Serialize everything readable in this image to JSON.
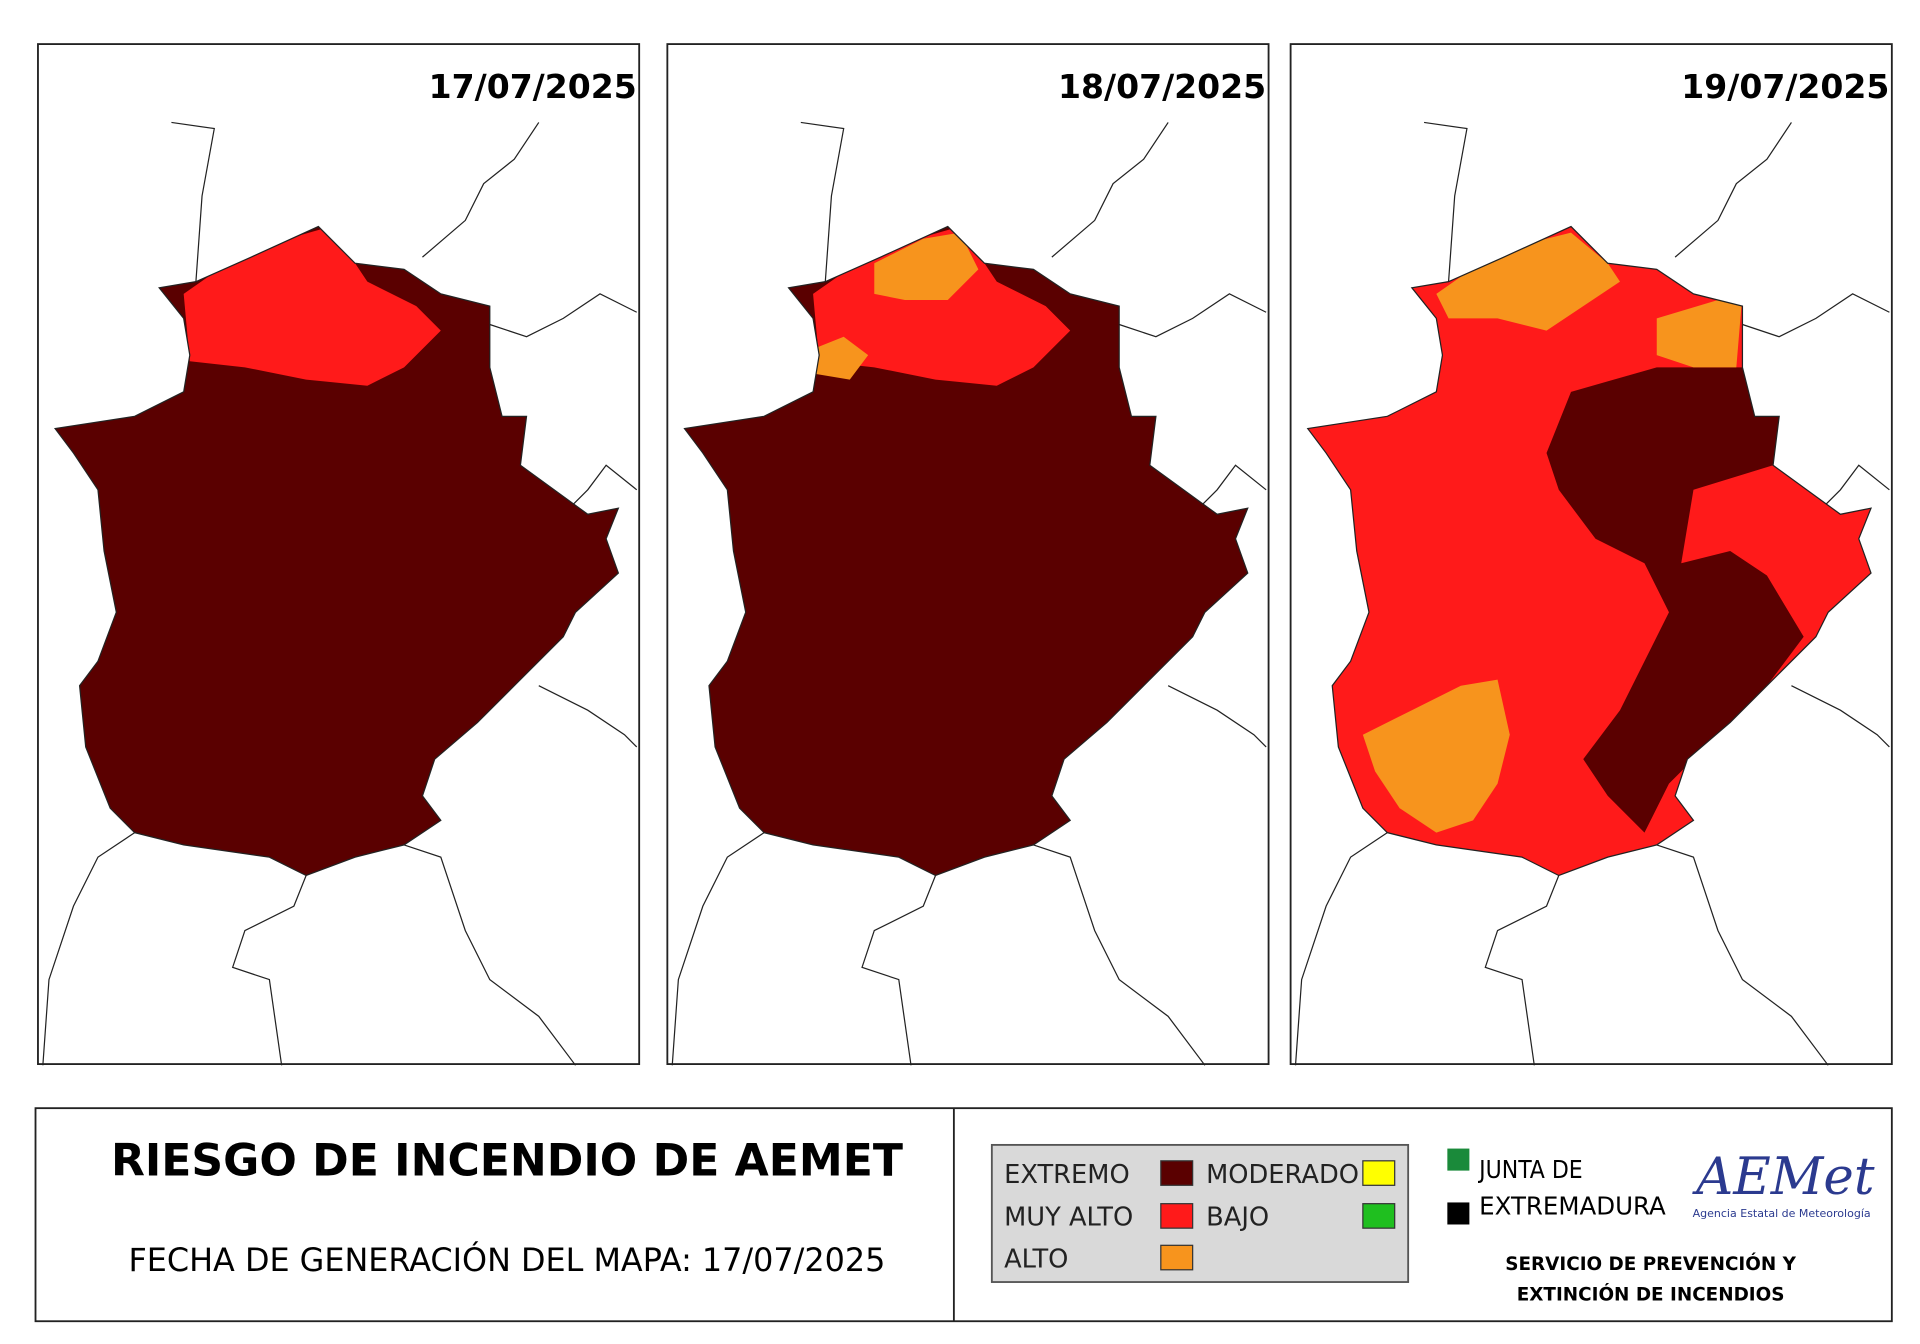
{
  "panels": [
    {
      "date": "17/07/2025"
    },
    {
      "date": "18/07/2025"
    },
    {
      "date": "19/07/2025"
    }
  ],
  "footer": {
    "title": "RIESGO DE INCENDIO DE AEMET",
    "subtitle": "FECHA DE GENERACIÓN DEL MAPA: 17/07/2025"
  },
  "legend": [
    {
      "label": "EXTREMO",
      "color": "#5a0000"
    },
    {
      "label": "MUY ALTO",
      "color": "#ff1a1a"
    },
    {
      "label": "ALTO",
      "color": "#f7941d"
    },
    {
      "label": "MODERADO",
      "color": "#ffff00"
    },
    {
      "label": "BAJO",
      "color": "#1fbf1f"
    }
  ],
  "junta": {
    "line1": "JUNTA DE",
    "line2": "EXTREMADURA"
  },
  "aemet": {
    "logo": "AEMet",
    "name": "Agencia Estatal de Meteorología"
  },
  "service": {
    "line1": "SERVICIO DE PREVENCIÓN Y",
    "line2": "EXTINCIÓN DE INCENDIOS"
  }
}
